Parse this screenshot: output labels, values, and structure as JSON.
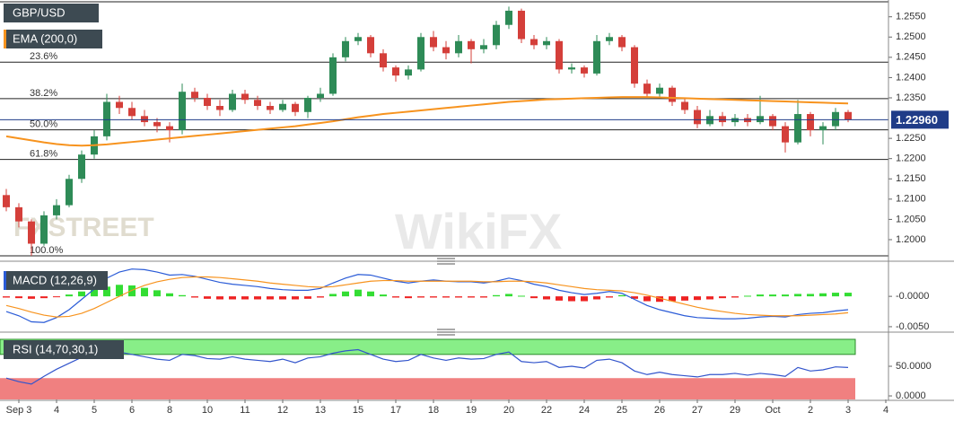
{
  "chart_data": [
    {
      "type": "candlestick",
      "title": "GBP/USD",
      "open": [
        1.211,
        1.208,
        1.2045,
        1.199,
        1.206,
        1.2085,
        1.215,
        1.221,
        1.2255,
        1.234,
        1.2325,
        1.2305,
        1.229,
        1.228,
        1.227,
        1.2365,
        1.235,
        1.233,
        1.232,
        1.236,
        1.2345,
        1.233,
        1.232,
        1.2335,
        1.2315,
        1.235,
        1.236,
        1.245,
        1.249,
        1.25,
        1.246,
        1.2425,
        1.2405,
        1.242,
        1.25,
        1.2475,
        1.246,
        1.249,
        1.247,
        1.248,
        1.253,
        1.2565,
        1.2495,
        1.248,
        1.249,
        1.242,
        1.2425,
        1.241,
        1.249,
        1.25,
        1.2475,
        1.2385,
        1.236,
        1.2375,
        1.234,
        1.232,
        1.2285,
        1.2305,
        1.229,
        1.23,
        1.229,
        1.2305,
        1.228,
        1.224,
        1.231,
        1.227,
        1.228,
        1.2315,
        null,
        null,
        null
      ],
      "high": [
        1.2125,
        1.209,
        1.205,
        1.207,
        1.21,
        1.216,
        1.222,
        1.227,
        1.236,
        1.2355,
        1.234,
        1.232,
        1.23,
        1.229,
        1.2385,
        1.2375,
        1.236,
        1.2345,
        1.237,
        1.237,
        1.2355,
        1.234,
        1.2345,
        1.234,
        1.2355,
        1.2375,
        1.246,
        1.25,
        1.251,
        1.2505,
        1.247,
        1.243,
        1.243,
        1.251,
        1.2515,
        1.249,
        1.2505,
        1.2495,
        1.2495,
        1.254,
        1.2575,
        1.257,
        1.2505,
        1.25,
        1.2495,
        1.2435,
        1.243,
        1.2505,
        1.251,
        1.2505,
        1.248,
        1.2395,
        1.2385,
        1.238,
        1.235,
        1.233,
        1.232,
        1.2315,
        1.231,
        1.231,
        1.2355,
        1.231,
        1.229,
        1.2345,
        1.2315,
        1.229,
        1.2325,
        1.232,
        null,
        null,
        null
      ],
      "low": [
        1.207,
        1.203,
        1.196,
        1.1985,
        1.205,
        1.208,
        1.214,
        1.22,
        1.2245,
        1.231,
        1.2295,
        1.228,
        1.2265,
        1.224,
        1.226,
        1.234,
        1.232,
        1.2305,
        1.2315,
        1.2335,
        1.232,
        1.231,
        1.2315,
        1.2305,
        1.23,
        1.234,
        1.2355,
        1.244,
        1.248,
        1.245,
        1.2415,
        1.239,
        1.2395,
        1.2415,
        1.2465,
        1.2445,
        1.245,
        1.2435,
        1.246,
        1.247,
        1.252,
        1.2485,
        1.247,
        1.247,
        1.241,
        1.241,
        1.24,
        1.2405,
        1.248,
        1.2465,
        1.2375,
        1.235,
        1.235,
        1.233,
        1.231,
        1.2275,
        1.228,
        1.228,
        1.228,
        1.228,
        1.2285,
        1.227,
        1.2215,
        1.2235,
        1.2255,
        1.2235,
        1.227,
        1.229,
        null,
        null,
        null
      ],
      "close": [
        1.208,
        1.2045,
        1.199,
        1.206,
        1.2085,
        1.215,
        1.221,
        1.2255,
        1.234,
        1.2325,
        1.2305,
        1.229,
        1.228,
        1.227,
        1.2365,
        1.235,
        1.233,
        1.232,
        1.236,
        1.2345,
        1.233,
        1.232,
        1.2335,
        1.2315,
        1.235,
        1.236,
        1.245,
        1.249,
        1.25,
        1.246,
        1.2425,
        1.2405,
        1.242,
        1.25,
        1.2475,
        1.246,
        1.249,
        1.247,
        1.248,
        1.253,
        1.2565,
        1.2495,
        1.248,
        1.249,
        1.242,
        1.2425,
        1.241,
        1.249,
        1.25,
        1.2475,
        1.2385,
        1.236,
        1.2375,
        1.234,
        1.232,
        1.2285,
        1.2305,
        1.229,
        1.23,
        1.229,
        1.2305,
        1.228,
        1.224,
        1.231,
        1.227,
        1.228,
        1.2315,
        1.2296,
        null,
        null,
        null
      ],
      "up_color": "#2e8b57",
      "down_color": "#d43f3a",
      "series": [
        {
          "name": "EMA (200,0)",
          "color": "#f7931e",
          "values": [
            1.2255,
            1.225,
            1.2245,
            1.224,
            1.2236,
            1.2233,
            1.2232,
            1.2233,
            1.2235,
            1.2238,
            1.2241,
            1.2244,
            1.2247,
            1.225,
            1.2253,
            1.2256,
            1.2259,
            1.2262,
            1.2265,
            1.2268,
            1.2271,
            1.2274,
            1.2277,
            1.228,
            1.2284,
            1.2288,
            1.2292,
            1.2297,
            1.2302,
            1.2306,
            1.231,
            1.2313,
            1.2316,
            1.2319,
            1.2322,
            1.2325,
            1.2328,
            1.2331,
            1.2334,
            1.2337,
            1.234,
            1.2342,
            1.2344,
            1.2346,
            1.2347,
            1.2348,
            1.2349,
            1.235,
            1.2351,
            1.2352,
            1.2352,
            1.2352,
            1.2351,
            1.235,
            1.2349,
            1.2348,
            1.2347,
            1.2346,
            1.2345,
            1.2344,
            1.2343,
            1.2342,
            1.2341,
            1.234,
            1.2339,
            1.2338,
            1.2337,
            1.2336,
            null,
            null,
            null
          ]
        }
      ],
      "ylim": [
        1.1949,
        1.2587
      ],
      "yticks": [
        {
          "value": 1.2,
          "label": "1.2000"
        },
        {
          "value": 1.205,
          "label": "1.2050"
        },
        {
          "value": 1.21,
          "label": "1.2100"
        },
        {
          "value": 1.215,
          "label": "1.2150"
        },
        {
          "value": 1.22,
          "label": "1.2200"
        },
        {
          "value": 1.225,
          "label": "1.2250"
        },
        {
          "value": 1.235,
          "label": "1.2350"
        },
        {
          "value": 1.24,
          "label": "1.2400"
        },
        {
          "value": 1.245,
          "label": "1.2450"
        },
        {
          "value": 1.25,
          "label": "1.2500"
        },
        {
          "value": 1.255,
          "label": "1.2550"
        }
      ],
      "fib_levels": [
        {
          "value": 1.2438,
          "label": "23.6%"
        },
        {
          "value": 1.2348,
          "label": "38.2%"
        },
        {
          "value": 1.2271,
          "label": "50.0%"
        },
        {
          "value": 1.2198,
          "label": "61.8%"
        },
        {
          "value": 1.196,
          "label": "100.0%"
        }
      ],
      "last_price": {
        "value": 1.2296,
        "label": "1.22960"
      },
      "watermarks": [
        "FXSTREET",
        "WikiFX"
      ]
    },
    {
      "type": "macd",
      "title": "MACD (12,26,9)",
      "series": [
        {
          "color": "#2a5bd7",
          "values": [
            -0.0025,
            -0.0032,
            -0.0042,
            -0.0043,
            -0.0035,
            -0.0022,
            -0.0005,
            0.0012,
            0.003,
            0.004,
            0.0045,
            0.0044,
            0.004,
            0.0035,
            0.0036,
            0.0033,
            0.0028,
            0.0023,
            0.002,
            0.0018,
            0.0016,
            0.0013,
            0.0011,
            0.001,
            0.001,
            0.0013,
            0.0022,
            0.003,
            0.0036,
            0.0035,
            0.003,
            0.0025,
            0.0022,
            0.0025,
            0.0027,
            0.0025,
            0.0024,
            0.0024,
            0.0022,
            0.0025,
            0.003,
            0.0026,
            0.002,
            0.0016,
            0.001,
            0.0006,
            0.0003,
            0.0005,
            0.0008,
            0.0005,
            -0.0005,
            -0.0015,
            -0.0022,
            -0.0027,
            -0.0032,
            -0.0035,
            -0.0036,
            -0.0037,
            -0.0037,
            -0.0036,
            -0.0034,
            -0.0033,
            -0.0034,
            -0.003,
            -0.0028,
            -0.0027,
            -0.0024,
            -0.0022,
            null,
            null,
            null
          ]
        },
        {
          "color": "#f7931e",
          "values": [
            -0.0015,
            -0.002,
            -0.0026,
            -0.0031,
            -0.0034,
            -0.0033,
            -0.0028,
            -0.002,
            -0.001,
            0.0,
            0.001,
            0.0018,
            0.0024,
            0.0028,
            0.0031,
            0.0032,
            0.0032,
            0.0031,
            0.0029,
            0.0027,
            0.0025,
            0.0022,
            0.002,
            0.0018,
            0.0016,
            0.0015,
            0.0016,
            0.0019,
            0.0022,
            0.0025,
            0.0026,
            0.0026,
            0.0025,
            0.0025,
            0.0025,
            0.0025,
            0.0025,
            0.0025,
            0.0024,
            0.0024,
            0.0025,
            0.0025,
            0.0024,
            0.0022,
            0.0019,
            0.0016,
            0.0013,
            0.0011,
            0.001,
            0.0009,
            0.0006,
            0.0002,
            -0.0003,
            -0.0008,
            -0.0013,
            -0.0018,
            -0.0022,
            -0.0025,
            -0.0028,
            -0.003,
            -0.0031,
            -0.0032,
            -0.0032,
            -0.0032,
            -0.0031,
            -0.003,
            -0.0029,
            -0.0027,
            null,
            null,
            null
          ]
        }
      ],
      "histogram": {
        "up_color": "#33dd33",
        "down_color": "#ee2222",
        "values": [
          -0.0002,
          -0.0003,
          -0.0004,
          -0.0003,
          -0.0001,
          0.0003,
          0.0008,
          0.0012,
          0.0016,
          0.0019,
          0.0018,
          0.0014,
          0.001,
          0.0005,
          0.0002,
          -0.0002,
          -0.0004,
          -0.0005,
          -0.0005,
          -0.0005,
          -0.0005,
          -0.0005,
          -0.0005,
          -0.0005,
          -0.0004,
          -0.0002,
          0.0004,
          0.0008,
          0.0011,
          0.0008,
          0.0003,
          -0.0002,
          -0.0003,
          -0.0002,
          -0.0002,
          -0.0002,
          -0.0002,
          -0.0002,
          -0.0002,
          0.0002,
          0.0004,
          0.0001,
          -0.0003,
          -0.0005,
          -0.0007,
          -0.0008,
          -0.0008,
          -0.0005,
          -0.0002,
          0.0002,
          -0.0004,
          -0.0008,
          -0.0009,
          -0.0008,
          -0.0007,
          -0.0006,
          -0.0005,
          -0.0003,
          -0.0002,
          0.0001,
          0.0003,
          0.0003,
          0.0003,
          0.0004,
          0.0004,
          0.0005,
          0.0006,
          0.0006,
          null,
          null,
          null
        ]
      },
      "ylim": [
        -0.0056,
        0.0049
      ],
      "yticks": [
        {
          "value": 0,
          "label": "-0.0000"
        },
        {
          "value": -0.005,
          "label": "-0.0050"
        }
      ]
    },
    {
      "type": "rsi",
      "title": "RSI (14,70,30,1)",
      "color": "#3355cc",
      "values": [
        30,
        24,
        20,
        33,
        45,
        55,
        65,
        72,
        75,
        74,
        70,
        66,
        62,
        60,
        70,
        68,
        63,
        62,
        66,
        62,
        60,
        58,
        62,
        56,
        64,
        66,
        72,
        76,
        78,
        70,
        62,
        58,
        60,
        70,
        64,
        60,
        64,
        62,
        63,
        70,
        74,
        58,
        56,
        58,
        48,
        50,
        47,
        60,
        62,
        56,
        42,
        36,
        40,
        36,
        34,
        32,
        36,
        36,
        38,
        35,
        38,
        36,
        33,
        48,
        42,
        44,
        49,
        48,
        null,
        null,
        null
      ],
      "overbought": 70,
      "oversold": 30,
      "overbought_color": "#88ee88",
      "oversold_color": "#f08080",
      "ylim": [
        -6,
        98.5
      ],
      "yticks": [
        {
          "value": 50,
          "label": "50.0000"
        },
        {
          "value": 0,
          "label": "0.0000"
        }
      ],
      "categories": [
        null,
        "Sep 3",
        null,
        null,
        "4",
        null,
        null,
        "5",
        null,
        null,
        "6",
        null,
        null,
        "8",
        null,
        null,
        "10",
        null,
        null,
        "11",
        null,
        null,
        "12",
        null,
        null,
        "13",
        null,
        null,
        "15",
        null,
        null,
        "17",
        null,
        null,
        "18",
        null,
        null,
        "19",
        null,
        null,
        "20",
        null,
        null,
        "22",
        null,
        null,
        "24",
        null,
        null,
        "25",
        null,
        null,
        "26",
        null,
        null,
        "27",
        null,
        null,
        "29",
        null,
        null,
        "Oct",
        null,
        null,
        "2",
        null,
        null,
        "3",
        null,
        null,
        "4"
      ]
    }
  ]
}
